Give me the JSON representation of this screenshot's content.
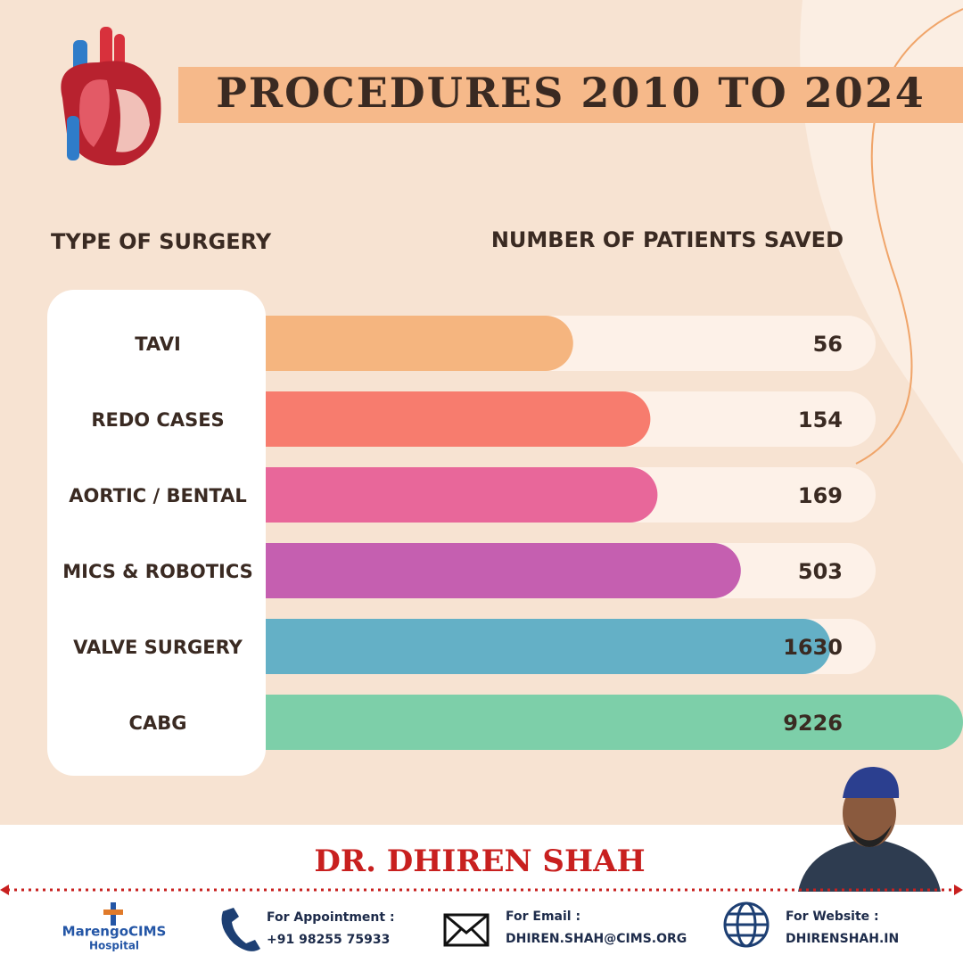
{
  "chart_data": {
    "type": "bar",
    "title": "PROCEDURES 2010 TO 2024",
    "category_header": "TYPE OF SURGERY",
    "value_header": "NUMBER OF PATIENTS SAVED",
    "categories": [
      "TAVI",
      "REDO CASES",
      "AORTIC / BENTAL",
      "MICS & ROBOTICS",
      "VALVE SURGERY",
      "CABG"
    ],
    "values": [
      56,
      154,
      169,
      503,
      1630,
      9226
    ],
    "colors": [
      "#f5b57f",
      "#f77c6e",
      "#e8679a",
      "#c55fb0",
      "#64b0c6",
      "#7dcfa9"
    ],
    "log_scale": true
  },
  "footer": {
    "doctor": "DR. DHIREN SHAH",
    "logo": {
      "name": "MarengoCIMS",
      "sub": "Hospital"
    },
    "appointment": {
      "label": "For Appointment :",
      "value": "+91 98255 75933"
    },
    "email": {
      "label": "For Email :",
      "value": "DHIREN.SHAH@CIMS.ORG"
    },
    "website": {
      "label": "For Website :",
      "value": "DHIRENSHAH.IN"
    }
  }
}
